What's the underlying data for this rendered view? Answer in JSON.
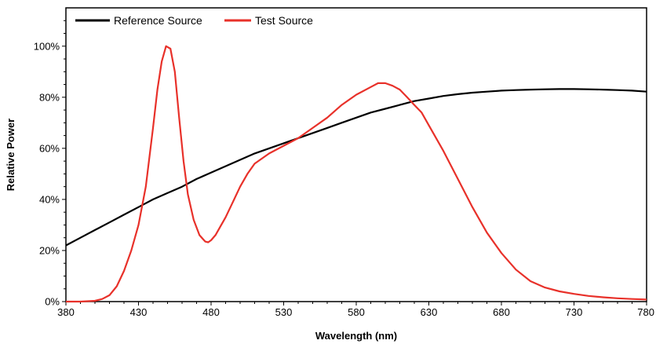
{
  "chart_data": {
    "type": "line",
    "title": "",
    "xlabel": "Wavelength (nm)",
    "ylabel": "Relative Power",
    "xlim": [
      380,
      780
    ],
    "ylim": [
      0,
      1.15
    ],
    "x_ticks": [
      380,
      430,
      480,
      530,
      580,
      630,
      680,
      730,
      780
    ],
    "y_ticks": [
      0,
      0.2,
      0.4,
      0.6,
      0.8,
      1.0
    ],
    "y_tick_labels": [
      "0%",
      "20%",
      "40%",
      "60%",
      "80%",
      "100%"
    ],
    "grid": false,
    "legend_position": "top-left",
    "series": [
      {
        "name": "Reference Source",
        "color": "#000000",
        "x": [
          380,
          390,
          400,
          410,
          420,
          430,
          440,
          450,
          460,
          470,
          480,
          490,
          500,
          510,
          520,
          530,
          540,
          550,
          560,
          570,
          580,
          590,
          600,
          610,
          620,
          630,
          640,
          650,
          660,
          670,
          680,
          690,
          700,
          710,
          720,
          730,
          740,
          750,
          760,
          770,
          780
        ],
        "y": [
          0.22,
          0.25,
          0.28,
          0.31,
          0.34,
          0.37,
          0.4,
          0.425,
          0.45,
          0.48,
          0.505,
          0.53,
          0.555,
          0.58,
          0.6,
          0.62,
          0.64,
          0.66,
          0.68,
          0.7,
          0.72,
          0.74,
          0.755,
          0.77,
          0.785,
          0.795,
          0.805,
          0.812,
          0.818,
          0.822,
          0.826,
          0.828,
          0.83,
          0.831,
          0.832,
          0.832,
          0.831,
          0.83,
          0.828,
          0.826,
          0.822
        ]
      },
      {
        "name": "Test Source",
        "color": "#e8312a",
        "x": [
          380,
          390,
          400,
          405,
          410,
          415,
          420,
          425,
          430,
          435,
          440,
          443,
          446,
          449,
          452,
          455,
          458,
          461,
          464,
          468,
          472,
          476,
          478,
          480,
          483,
          486,
          490,
          495,
          500,
          505,
          510,
          520,
          530,
          540,
          550,
          560,
          570,
          580,
          590,
          595,
          600,
          605,
          610,
          615,
          620,
          625,
          630,
          640,
          650,
          660,
          670,
          680,
          690,
          700,
          710,
          720,
          730,
          740,
          750,
          760,
          770,
          780
        ],
        "y": [
          0.0,
          0.0,
          0.003,
          0.01,
          0.025,
          0.06,
          0.12,
          0.2,
          0.3,
          0.45,
          0.68,
          0.83,
          0.94,
          1.0,
          0.99,
          0.9,
          0.72,
          0.55,
          0.42,
          0.32,
          0.26,
          0.235,
          0.232,
          0.24,
          0.26,
          0.29,
          0.33,
          0.39,
          0.45,
          0.5,
          0.54,
          0.58,
          0.61,
          0.64,
          0.68,
          0.72,
          0.77,
          0.81,
          0.84,
          0.855,
          0.855,
          0.845,
          0.83,
          0.8,
          0.77,
          0.74,
          0.69,
          0.59,
          0.48,
          0.37,
          0.27,
          0.19,
          0.125,
          0.08,
          0.055,
          0.04,
          0.03,
          0.022,
          0.017,
          0.013,
          0.01,
          0.008
        ]
      }
    ]
  }
}
